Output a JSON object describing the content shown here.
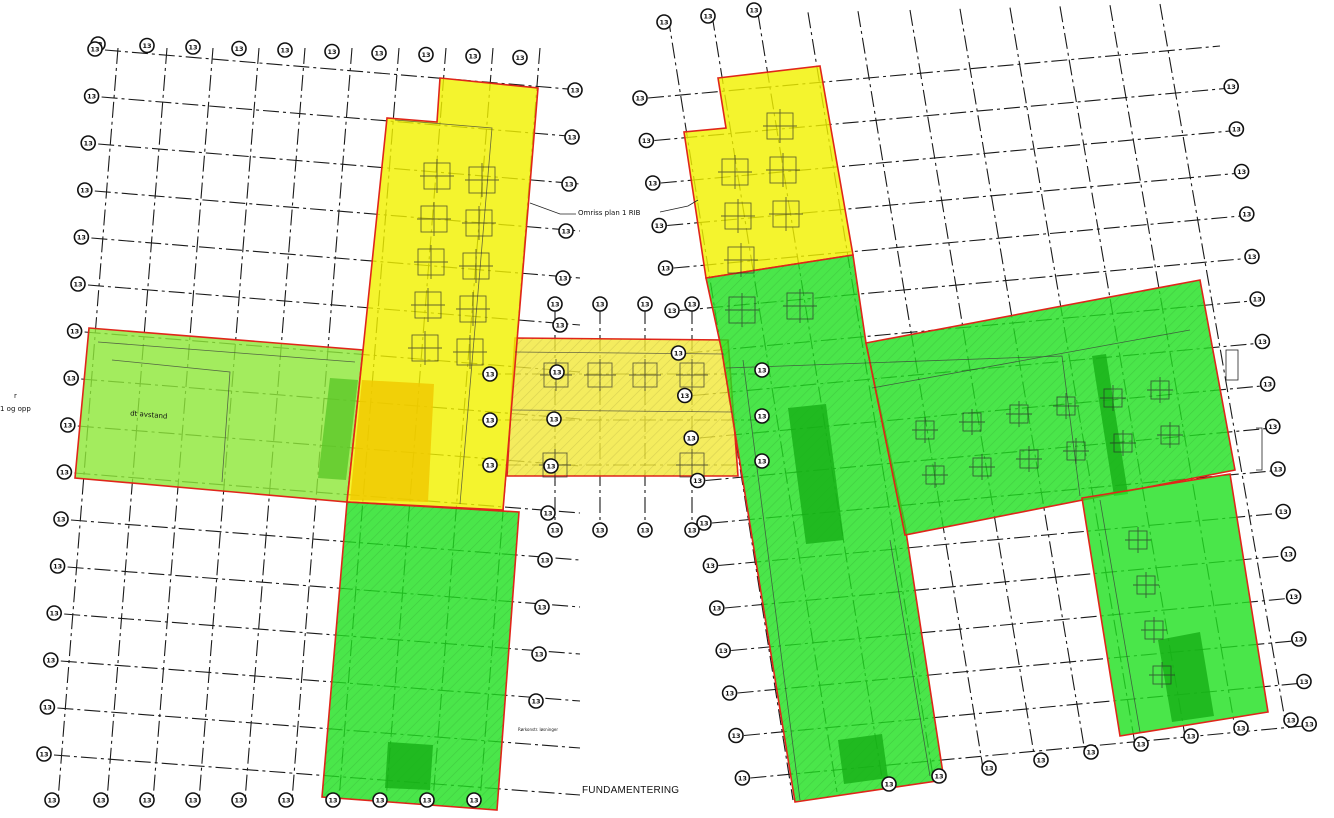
{
  "drawing": {
    "title": "FUNDAMENTERING",
    "outline_note_left": "Omriss plan 1 RIB",
    "outline_note_right": "",
    "edge_note_left_1": "r",
    "edge_note_left_2": "1 og opp",
    "wing_note": "dt avstand",
    "bottom_note": "Rørkonstr. løsninger",
    "axis_bubble_label": "13"
  },
  "zone_colors": {
    "yellow": "#f2f200",
    "yellow_dark": "#f0c800",
    "green": "#22e022",
    "green_dark": "#17b017",
    "lime": "#8fe83a",
    "outline": "#e0261a",
    "grid": "#1a1a1a"
  },
  "zones": [
    {
      "id": "zone-north-west-tower",
      "color": "yellow"
    },
    {
      "id": "zone-north-east-tower",
      "color": "yellow"
    },
    {
      "id": "zone-link-bridge",
      "color": "yellow"
    },
    {
      "id": "zone-west-wing",
      "color": "lime"
    },
    {
      "id": "zone-south-west-tower",
      "color": "green"
    },
    {
      "id": "zone-east-central",
      "color": "green"
    },
    {
      "id": "zone-east-wing",
      "color": "green"
    },
    {
      "id": "zone-east-south-leg",
      "color": "green"
    }
  ]
}
